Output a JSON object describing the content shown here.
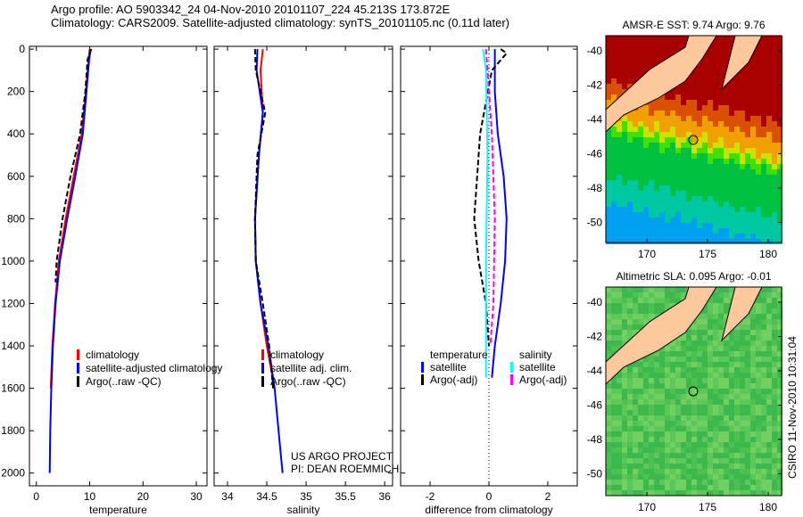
{
  "title_line1": "Argo profile: AO 5903342_24 04-Nov-2010 20101107_224 45.213S 173.872E",
  "title_line2": "Climatology: CARS2009. Satellite-adjusted climatology: synTS_20101105.nc (0.11d later)",
  "credit": "CSIRO 11-Nov-2010 10:31:04",
  "project_line1": "US ARGO PROJECT",
  "project_line2": "PI: DEAN ROEMMICH",
  "colors": {
    "climatology": "#ff0000",
    "satellite": "#0000ff",
    "argo": "#000000",
    "sal_satellite": "#00ffff",
    "sal_argo": "#ff00ff"
  },
  "chart_data": [
    {
      "type": "line",
      "xlabel": "temperature",
      "ylabel": "depth",
      "xlim": [
        -1.3,
        32
      ],
      "ylim": [
        2060,
        -13
      ],
      "xticks": [
        "0",
        "10",
        "20",
        "30"
      ],
      "xtickvals": [
        0,
        10,
        20,
        30
      ],
      "yticks": [
        "0",
        "200",
        "400",
        "600",
        "800",
        "1000",
        "1200",
        "1400",
        "1600",
        "1800",
        "2000"
      ],
      "legend": [
        "climatology",
        "satellite-adjusted climatology",
        "Argo(..raw -QC)"
      ],
      "series": [
        {
          "name": "climatology",
          "color": "#ff0000",
          "dash": false,
          "depth": [
            0,
            50,
            200,
            400,
            600,
            800,
            1000,
            1200,
            1400,
            1600
          ],
          "values": [
            10,
            9.8,
            9.3,
            8.5,
            7,
            5.5,
            4.2,
            3.5,
            3.0,
            2.7
          ]
        },
        {
          "name": "satellite-adjusted climatology",
          "color": "#0000ff",
          "dash": false,
          "depth": [
            0,
            50,
            200,
            400,
            600,
            800,
            1000,
            1200,
            1400,
            1600,
            1800,
            2000
          ],
          "values": [
            10.2,
            9.9,
            9.4,
            8.7,
            7.3,
            5.8,
            4.4,
            3.6,
            3.1,
            2.8,
            2.6,
            2.5
          ]
        },
        {
          "name": "Argo(..raw -QC)",
          "color": "#000000",
          "dash": true,
          "depth": [
            0,
            50,
            200,
            400,
            600,
            800,
            1000,
            1100
          ],
          "values": [
            10.3,
            9.6,
            9.2,
            8.2,
            6.4,
            4.9,
            3.8,
            3.6
          ]
        }
      ]
    },
    {
      "type": "line",
      "xlabel": "salinity",
      "ylabel": "depth",
      "xlim": [
        33.83,
        36.1
      ],
      "ylim": [
        2060,
        -13
      ],
      "xticks": [
        "34",
        "34.5",
        "35",
        "35.5",
        "36"
      ],
      "xtickvals": [
        34,
        34.5,
        35,
        35.5,
        36
      ],
      "legend": [
        "climatology",
        "satellite adj. clim.",
        "Argo(..raw -QC)"
      ],
      "series": [
        {
          "name": "climatology",
          "color": "#ff0000",
          "dash": false,
          "depth": [
            0,
            100,
            300,
            500,
            800,
            1000,
            1200,
            1400,
            1600
          ],
          "values": [
            34.45,
            34.42,
            34.45,
            34.4,
            34.35,
            34.36,
            34.42,
            34.5,
            34.6
          ]
        },
        {
          "name": "satellite adj. clim.",
          "color": "#0000ff",
          "dash": false,
          "depth": [
            0,
            100,
            300,
            500,
            800,
            1000,
            1200,
            1400,
            1600,
            1800,
            2000
          ],
          "values": [
            34.38,
            34.37,
            34.45,
            34.4,
            34.35,
            34.36,
            34.42,
            34.52,
            34.6,
            34.65,
            34.7
          ]
        },
        {
          "name": "Argo(..raw -QC)",
          "color": "#000000",
          "dash": true,
          "depth": [
            0,
            100,
            300,
            500,
            800,
            1000,
            1200,
            1400,
            1600
          ],
          "values": [
            34.35,
            34.36,
            34.48,
            34.38,
            34.35,
            34.36,
            34.45,
            34.53,
            34.58
          ]
        }
      ]
    },
    {
      "type": "line",
      "xlabel": "difference from climatology",
      "ylabel": "depth",
      "xlim": [
        -3,
        3
      ],
      "ylim": [
        2060,
        -13
      ],
      "xticks": [
        "-2",
        "0",
        "2"
      ],
      "xtickvals": [
        -2,
        0,
        2
      ],
      "legend_headers": [
        "temperature",
        "salinity"
      ],
      "legend": [
        "satellite",
        "Argo(-adj)",
        "satellite",
        "Argo(-adj)"
      ],
      "series": [
        {
          "name": "temperature satellite",
          "color": "#0000ff",
          "dash": false,
          "depth": [
            0,
            200,
            400,
            600,
            800,
            1000,
            1200,
            1400,
            1550
          ],
          "values": [
            0.2,
            0.2,
            0.3,
            0.5,
            0.6,
            0.55,
            0.4,
            0.2,
            0.1
          ]
        },
        {
          "name": "temperature Argo(-adj)",
          "color": "#000000",
          "dash": true,
          "depth": [
            0,
            20,
            100,
            400,
            600,
            800,
            1000,
            1200,
            1400
          ],
          "values": [
            0.4,
            0.6,
            0.1,
            -0.3,
            -0.4,
            -0.5,
            -0.35,
            -0.1,
            0
          ]
        },
        {
          "name": "salinity satellite",
          "color": "#00ffff",
          "dash": false,
          "depth": [
            0,
            100,
            500,
            1000,
            1300,
            1550
          ],
          "values": [
            -0.2,
            -0.1,
            -0.05,
            -0.1,
            -0.1,
            -0.1
          ]
        },
        {
          "name": "salinity Argo(-adj)",
          "color": "#ff00ff",
          "dash": true,
          "depth": [
            0,
            100,
            400,
            800,
            1200,
            1400
          ],
          "values": [
            -0.1,
            -0.05,
            0.1,
            0.2,
            0.15,
            0.05
          ]
        }
      ]
    },
    {
      "type": "heatmap",
      "title": "AMSR-E SST: 9.74 Argo: 9.76",
      "xticks": [
        "170",
        "175",
        "180"
      ],
      "yticks": [
        "-40",
        "-42",
        "-44",
        "-46",
        "-48",
        "-50"
      ]
    },
    {
      "type": "heatmap",
      "title": "Altimetric SLA: 0.095 Argo: -0.01",
      "xticks": [
        "170",
        "175",
        "180"
      ],
      "yticks": [
        "-40",
        "-42",
        "-44",
        "-46",
        "-48",
        "-50"
      ]
    }
  ]
}
